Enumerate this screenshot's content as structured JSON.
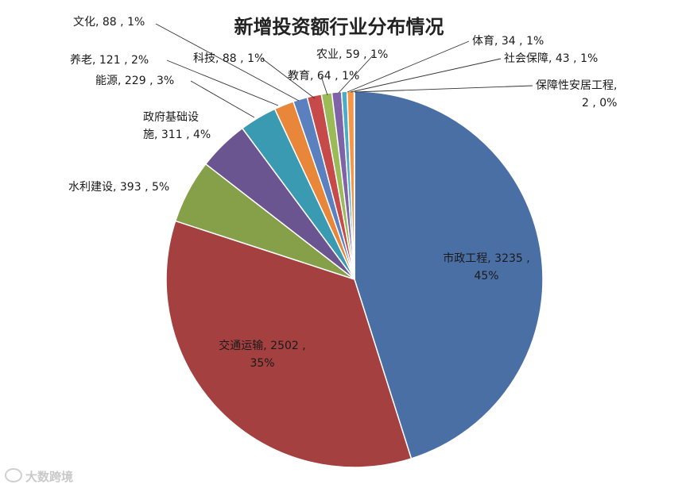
{
  "chart_data": {
    "type": "pie",
    "title": "新增投资额行业分布情况",
    "slices": [
      {
        "name": "市政工程",
        "value": 3235,
        "percent": "45%",
        "color": "#4a6fa5",
        "label": "市政工程, 3235 ,",
        "label2": "45%"
      },
      {
        "name": "交通运输",
        "value": 2502,
        "percent": "35%",
        "color": "#a4403f",
        "label": "交通运输, 2502 ,",
        "label2": "35%"
      },
      {
        "name": "水利建设",
        "value": 393,
        "percent": "5%",
        "color": "#86a04a",
        "label": "水利建设, 393 , 5%"
      },
      {
        "name": "政府基础设施",
        "value": 311,
        "percent": "4%",
        "color": "#6b5591",
        "label": "政府基础设",
        "label2": "施, 311 , 4%"
      },
      {
        "name": "能源",
        "value": 229,
        "percent": "3%",
        "color": "#3a9ab2",
        "label": "能源, 229 , 3%"
      },
      {
        "name": "养老",
        "value": 121,
        "percent": "2%",
        "color": "#e8873a",
        "label": "养老, 121 , 2%"
      },
      {
        "name": "文化",
        "value": 88,
        "percent": "1%",
        "color": "#5b80c0",
        "label": "文化, 88 , 1%"
      },
      {
        "name": "科技",
        "value": 88,
        "percent": "1%",
        "color": "#c64a4a",
        "label": "科技, 88 , 1%"
      },
      {
        "name": "教育",
        "value": 64,
        "percent": "1%",
        "color": "#9bbb59",
        "label": "教育, 64 , 1%"
      },
      {
        "name": "农业",
        "value": 59,
        "percent": "1%",
        "color": "#7f63a8",
        "label": "农业, 59 , 1%"
      },
      {
        "name": "体育",
        "value": 34,
        "percent": "1%",
        "color": "#4bacc6",
        "label": "体育, 34 , 1%"
      },
      {
        "name": "社会保障",
        "value": 43,
        "percent": "1%",
        "color": "#f79646",
        "label": "社会保障, 43 , 1%"
      },
      {
        "name": "保障性安居工程",
        "value": 2,
        "percent": "0%",
        "color": "#95b3d7",
        "label": "保障性安居工程,",
        "label2": "2 , 0%"
      }
    ]
  },
  "watermark": {
    "text": "大数跨境"
  }
}
